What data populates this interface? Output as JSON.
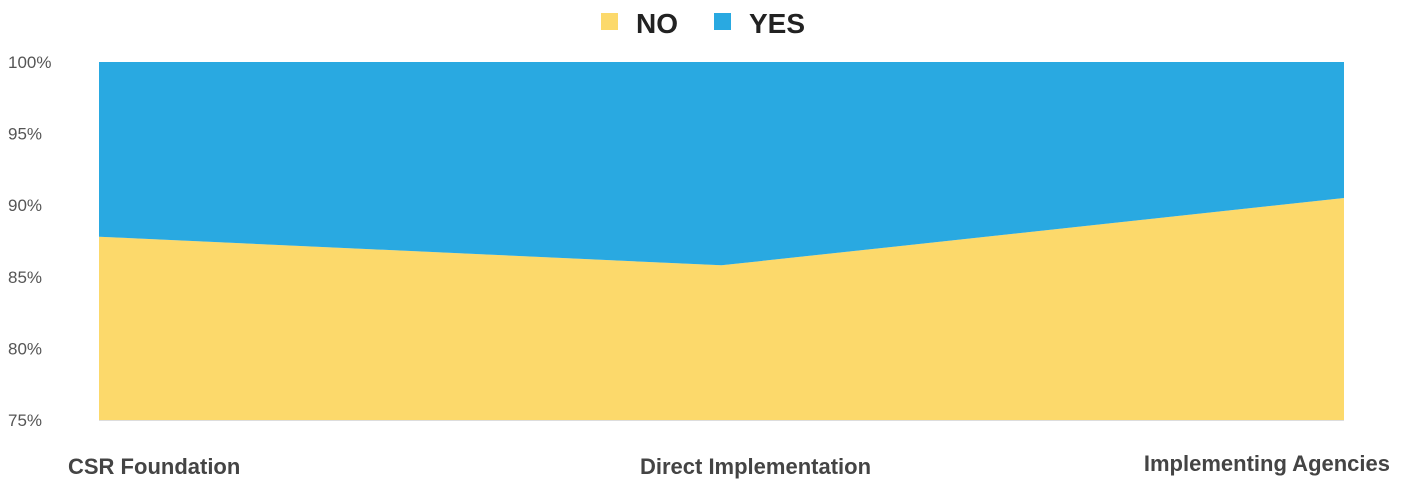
{
  "chart_data": {
    "type": "area",
    "stacked": "percent",
    "categories": [
      "CSR Foundation",
      "Direct Implementation",
      "Implementing Agencies"
    ],
    "series": [
      {
        "name": "NO",
        "color": "#FCD96B",
        "values": [
          87.8,
          85.8,
          90.5
        ]
      },
      {
        "name": "YES",
        "color": "#29A9E1",
        "values": [
          12.2,
          14.2,
          9.5
        ]
      }
    ],
    "ylim": [
      75,
      100
    ],
    "yticks": [
      "75%",
      "80%",
      "85%",
      "90%",
      "95%",
      "100%"
    ],
    "ytick_values": [
      75,
      80,
      85,
      90,
      95,
      100
    ],
    "legend_position": "top-center",
    "grid": false
  }
}
